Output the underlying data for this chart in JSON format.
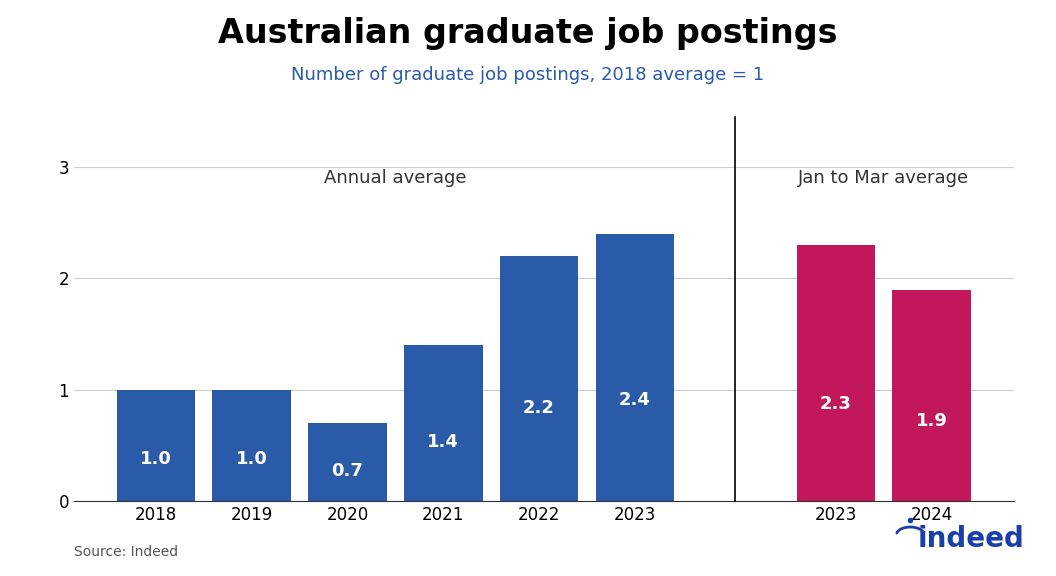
{
  "title": "Australian graduate job postings",
  "subtitle": "Number of graduate job postings, 2018 average = 1",
  "annual_labels": [
    "2018",
    "2019",
    "2020",
    "2021",
    "2022",
    "2023"
  ],
  "annual_values": [
    1.0,
    1.0,
    0.7,
    1.4,
    2.2,
    2.4
  ],
  "jan_mar_labels": [
    "2023",
    "2024"
  ],
  "jan_mar_values": [
    2.3,
    1.9
  ],
  "annual_color": "#2A5BA8",
  "jan_mar_color": "#C2185B",
  "bar_label_color": "#ffffff",
  "section_label_annual": "Annual average",
  "section_label_janmar": "Jan to Mar average",
  "ylim": [
    0,
    3
  ],
  "yticks": [
    0,
    1,
    2,
    3
  ],
  "source_text": "Source: Indeed",
  "title_fontsize": 24,
  "subtitle_fontsize": 13,
  "section_label_fontsize": 13,
  "bar_label_fontsize": 13,
  "tick_fontsize": 12,
  "source_fontsize": 10,
  "background_color": "#ffffff",
  "grid_color": "#cccccc",
  "subtitle_color": "#2A5BA8"
}
